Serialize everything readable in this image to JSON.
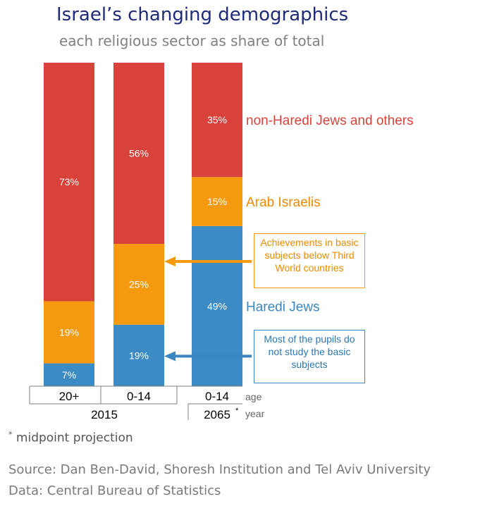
{
  "title": "Israel’s changing demographics",
  "subtitle": "each religious sector as share of total",
  "colors": {
    "nonharedi": "#d9423b",
    "arab": "#f59a0f",
    "haredi": "#3c8bc5"
  },
  "chart_data": {
    "type": "bar",
    "stacked": true,
    "categories": [
      "20+",
      "0-14",
      "0-14"
    ],
    "years": [
      "2015",
      "2065"
    ],
    "year_footnote_mark": "*",
    "axis_suffix_age": "age",
    "axis_suffix_year": "year",
    "series": [
      {
        "name": "Haredi Jews",
        "values": [
          7,
          19,
          49
        ]
      },
      {
        "name": "Arab Israelis",
        "values": [
          19,
          25,
          15
        ]
      },
      {
        "name": "non-Haredi Jews and others",
        "values": [
          73,
          56,
          35
        ]
      }
    ],
    "ylim": [
      0,
      100
    ]
  },
  "callouts": {
    "orange": "Achievements in basic subjects below Third World countries",
    "blue": "Most of the pupils do not study the basic subjects"
  },
  "footnote_mark": "*",
  "footnote": "midpoint projection",
  "source_line": "Source: Dan Ben-David, Shoresh Institution and Tel Aviv University",
  "data_line": "Data: Central Bureau of Statistics"
}
